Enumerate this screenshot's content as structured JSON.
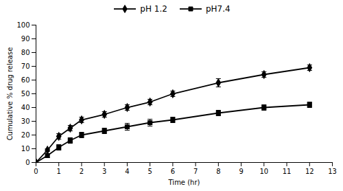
{
  "chart_data": {
    "type": "line",
    "xlabel": "Time (hr)",
    "ylabel": "Cumulative % drug release",
    "x": [
      0,
      0.5,
      1,
      1.5,
      2,
      3,
      4,
      5,
      6,
      8,
      10,
      12
    ],
    "series": [
      {
        "name": "pH 1.2",
        "color": "#000000",
        "marker": "diamond",
        "values": [
          0,
          9,
          19,
          25,
          31,
          35,
          40,
          44,
          50,
          58,
          64,
          69
        ],
        "yerr": [
          0,
          1,
          2,
          2,
          2,
          2,
          2,
          2,
          2,
          3,
          2,
          2
        ]
      },
      {
        "name": "pH7.4",
        "color": "#000000",
        "marker": "square",
        "values": [
          0,
          5,
          11,
          16,
          20,
          23,
          26,
          29,
          31,
          36,
          40,
          42
        ],
        "yerr": [
          0,
          1.5,
          2,
          2,
          2,
          2,
          2.5,
          2.5,
          2,
          2,
          2,
          2
        ]
      }
    ],
    "xlim": [
      0,
      13
    ],
    "ylim": [
      0,
      100
    ],
    "xticks": [
      0,
      1,
      2,
      3,
      4,
      5,
      6,
      7,
      8,
      9,
      10,
      11,
      12,
      13
    ],
    "yticks": [
      0,
      10,
      20,
      30,
      40,
      50,
      60,
      70,
      80,
      90,
      100
    ],
    "legend": "top",
    "grid": false
  }
}
